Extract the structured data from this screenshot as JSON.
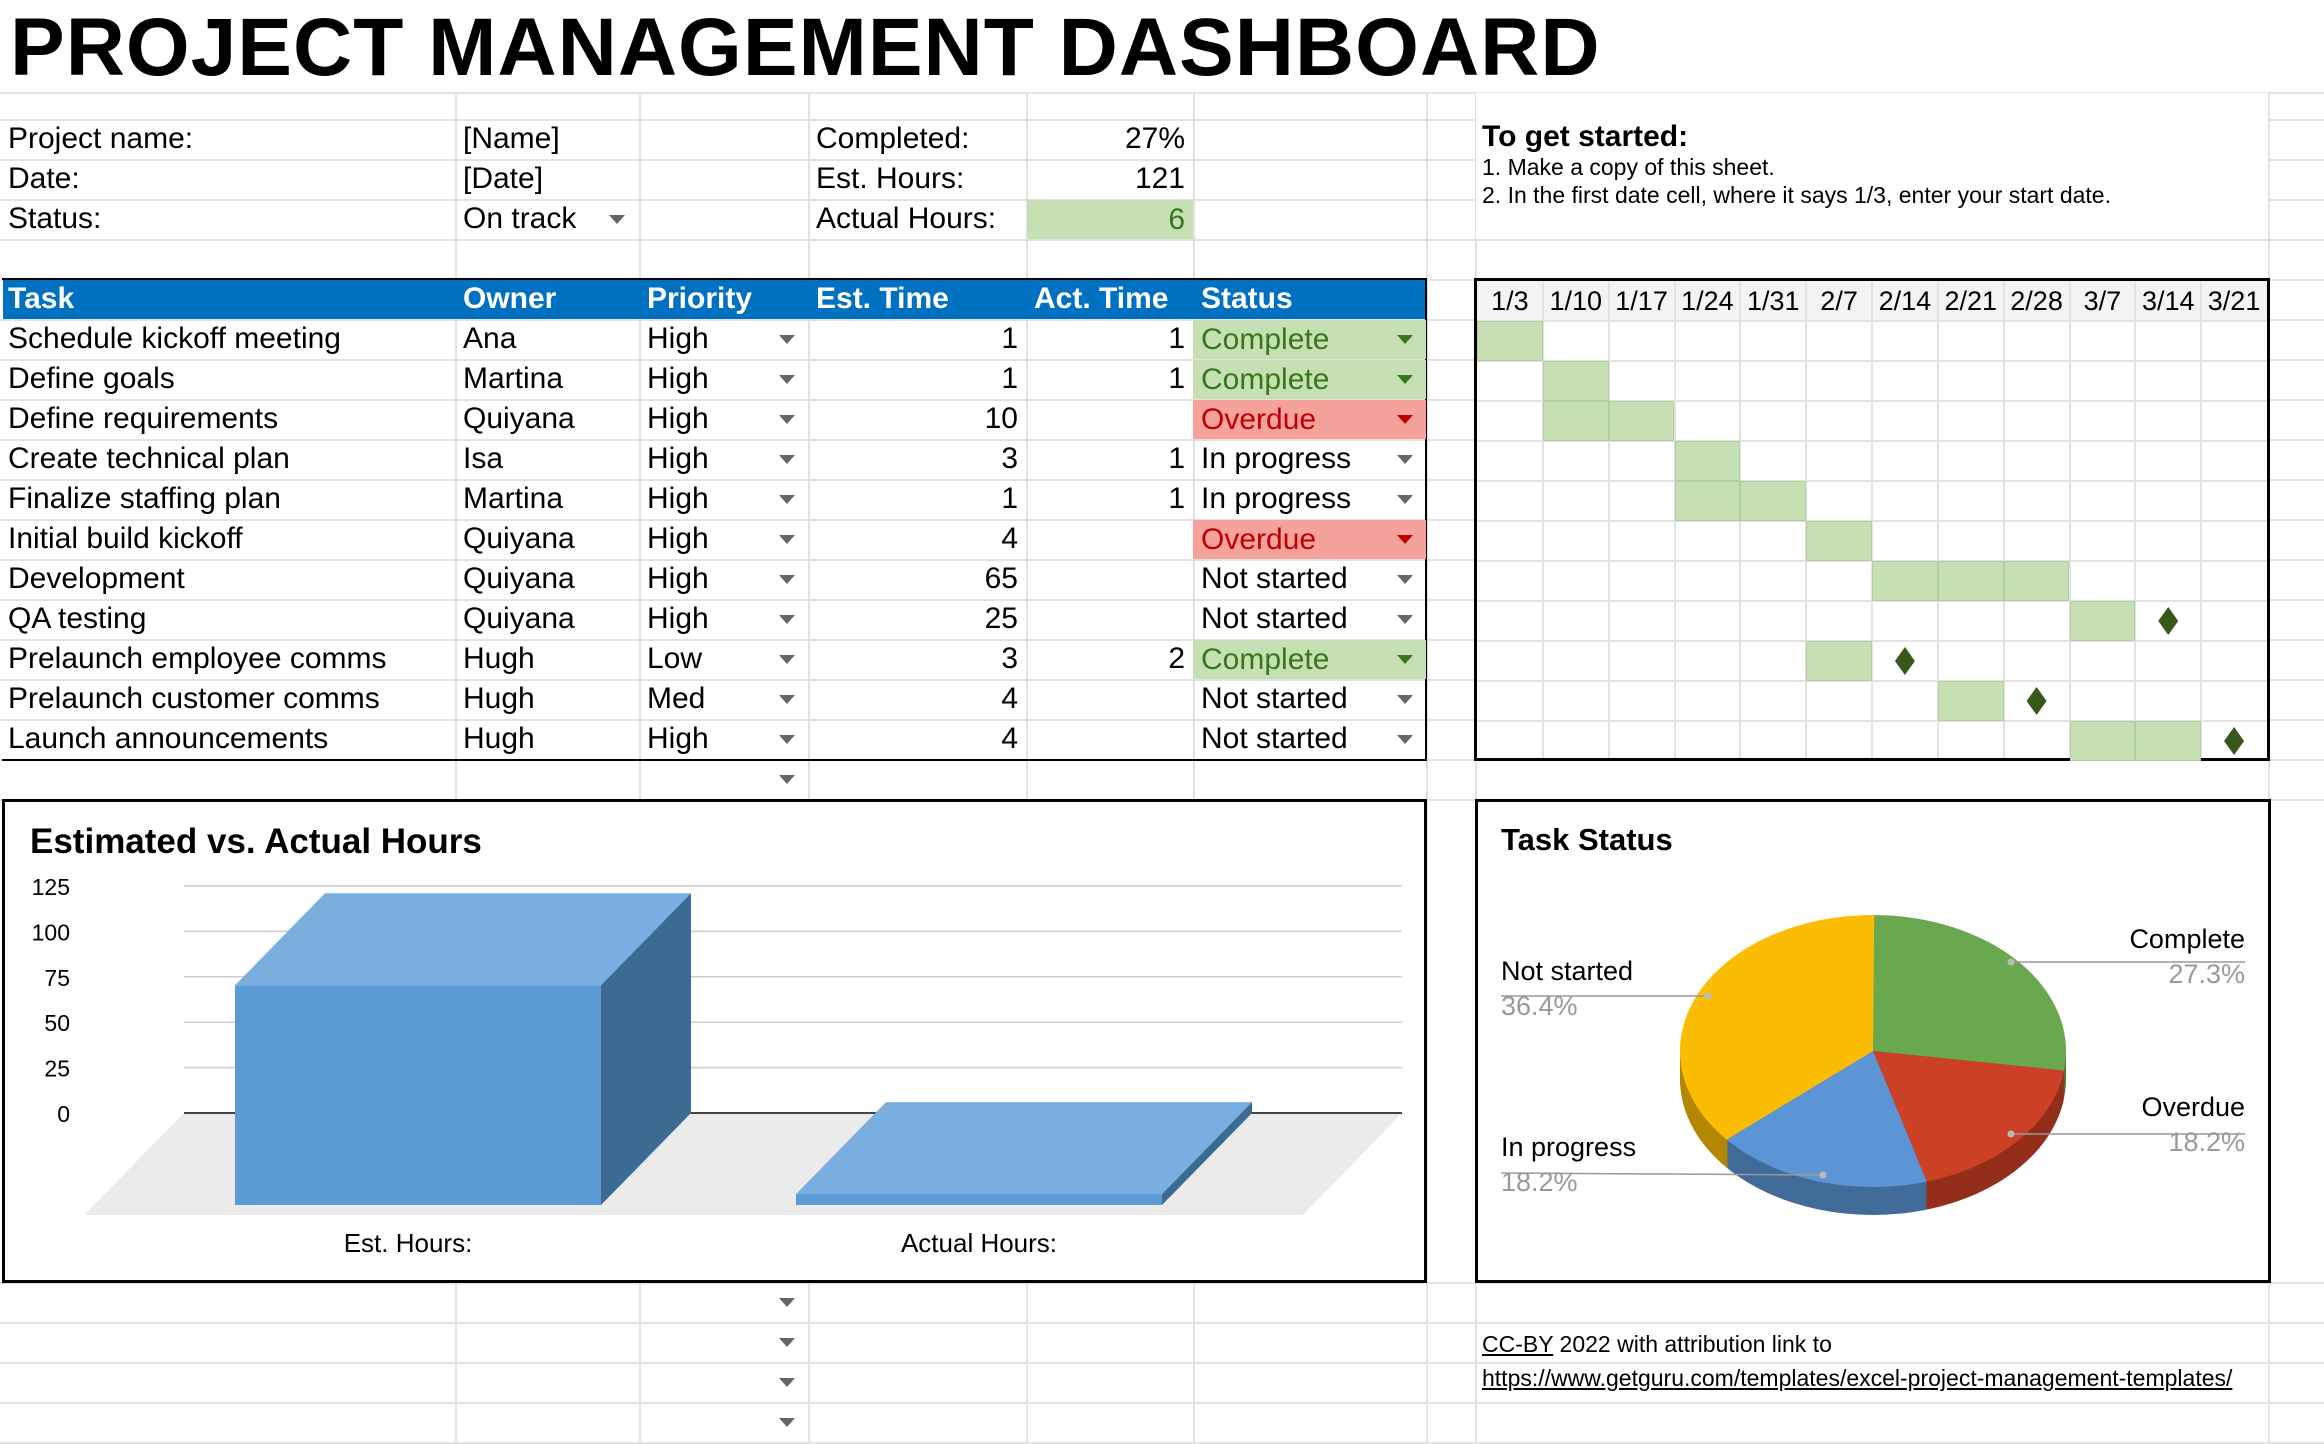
{
  "title": "PROJECT MANAGEMENT DASHBOARD",
  "info": {
    "project_name_label": "Project name:",
    "project_name": "[Name]",
    "date_label": "Date:",
    "date": "[Date]",
    "status_label": "Status:",
    "status": "On track",
    "completed_label": "Completed:",
    "completed": "27%",
    "est_hours_label": "Est. Hours:",
    "est_hours": "121",
    "actual_hours_label": "Actual Hours:",
    "actual_hours": "6"
  },
  "getting_started": {
    "heading": "To get started:",
    "step1": "1. Make a copy of this sheet.",
    "step2": "2. In the first date cell, where it says 1/3, enter your start date."
  },
  "table": {
    "headers": [
      "Task",
      "Owner",
      "Priority",
      "Est. Time",
      "Act. Time",
      "Status"
    ],
    "rows": [
      [
        "Schedule kickoff meeting",
        "Ana",
        "High",
        "1",
        "1",
        "Complete"
      ],
      [
        "Define goals",
        "Martina",
        "High",
        "1",
        "1",
        "Complete"
      ],
      [
        "Define requirements",
        "Quiyana",
        "High",
        "10",
        "",
        "Overdue"
      ],
      [
        "Create technical plan",
        "Isa",
        "High",
        "3",
        "1",
        "In progress"
      ],
      [
        "Finalize staffing plan",
        "Martina",
        "High",
        "1",
        "1",
        "In progress"
      ],
      [
        "Initial build kickoff",
        "Quiyana",
        "High",
        "4",
        "",
        "Overdue"
      ],
      [
        "Development",
        "Quiyana",
        "High",
        "65",
        "",
        "Not started"
      ],
      [
        "QA testing",
        "Quiyana",
        "High",
        "25",
        "",
        "Not started"
      ],
      [
        "Prelaunch employee comms",
        "Hugh",
        "Low",
        "3",
        "2",
        "Complete"
      ],
      [
        "Prelaunch customer comms",
        "Hugh",
        "Med",
        "4",
        "",
        "Not started"
      ],
      [
        "Launch announcements",
        "Hugh",
        "High",
        "4",
        "",
        "Not started"
      ]
    ]
  },
  "status_colors": {
    "Complete": {
      "bg": "#c6e0b4",
      "fg": "#38761d"
    },
    "Overdue": {
      "bg": "#f4a29b",
      "fg": "#c00000"
    }
  },
  "header_color": "#0070c0",
  "gantt": {
    "weeks": [
      "1/3",
      "1/10",
      "1/17",
      "1/24",
      "1/31",
      "2/7",
      "2/14",
      "2/21",
      "2/28",
      "3/7",
      "3/14",
      "3/21"
    ],
    "bars": [
      [
        0
      ],
      [
        1
      ],
      [
        1,
        2
      ],
      [
        3
      ],
      [
        3,
        4
      ],
      [
        5
      ],
      [
        6,
        7,
        8
      ],
      [
        9
      ],
      [
        5
      ],
      [
        7
      ],
      [
        9,
        10
      ]
    ],
    "milestones": [
      null,
      null,
      null,
      null,
      null,
      null,
      null,
      10,
      6,
      8,
      11
    ],
    "bar_color": "#c6e0b4",
    "milestone_color": "#38571a"
  },
  "chart_data": [
    {
      "type": "bar",
      "title": "Estimated vs. Actual Hours",
      "categories": [
        "Est. Hours:",
        "Actual Hours:"
      ],
      "values": [
        121,
        6
      ],
      "ylim": [
        0,
        125
      ],
      "yticks": [
        "125",
        "100",
        "75",
        "50",
        "25",
        "0"
      ],
      "grid": true,
      "style": "3d",
      "color": "#5b9bd5"
    },
    {
      "type": "pie",
      "title": "Task Status",
      "style": "3d",
      "legend": "labels",
      "slices": [
        {
          "label": "Complete",
          "pct": "27.3%",
          "value": 27.3,
          "color": "#6aa84f"
        },
        {
          "label": "Overdue",
          "pct": "18.2%",
          "value": 18.2,
          "color": "#cc4125"
        },
        {
          "label": "In progress",
          "pct": "18.2%",
          "value": 18.2,
          "color": "#5b95d5"
        },
        {
          "label": "Not started",
          "pct": "36.4%",
          "value": 36.4,
          "color": "#fbbc04"
        }
      ]
    }
  ],
  "footer": {
    "license": "CC-BY",
    "text": " 2022 with attribution link to",
    "link": "https://www.getguru.com/templates/excel-project-management-templates/"
  }
}
